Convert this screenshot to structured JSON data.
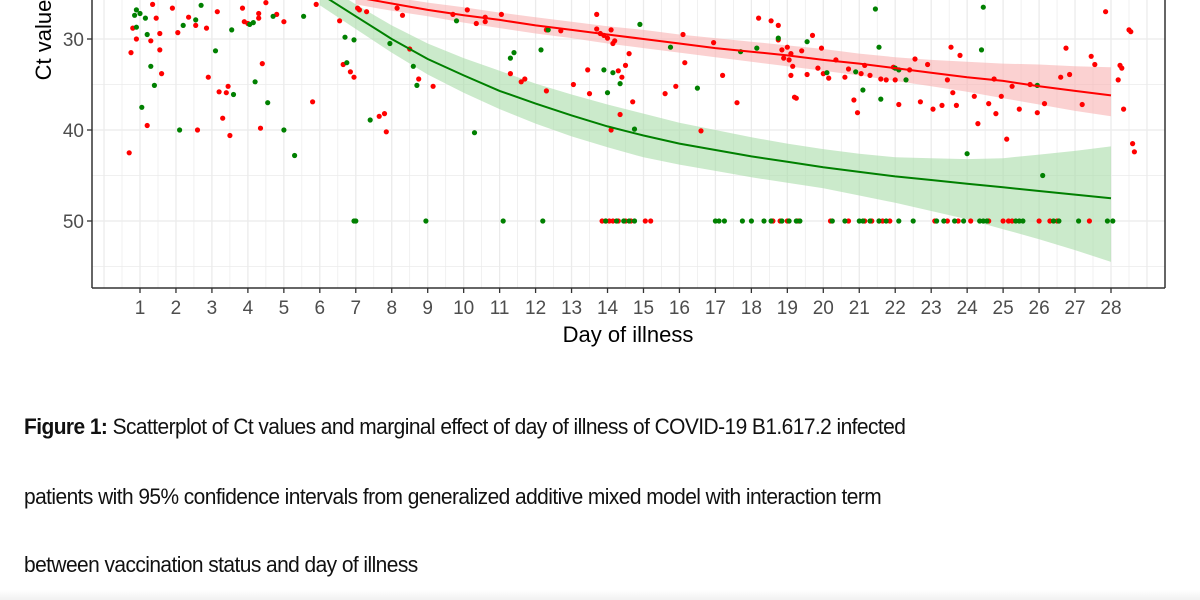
{
  "chart_data": {
    "type": "scatter",
    "title": "",
    "xlabel": "Day of illness",
    "ylabel": "Ct value",
    "x_ticks": [
      1,
      2,
      3,
      4,
      5,
      6,
      7,
      8,
      9,
      10,
      11,
      12,
      13,
      14,
      15,
      16,
      17,
      18,
      19,
      20,
      21,
      22,
      23,
      24,
      25,
      26,
      27,
      28
    ],
    "x_tick_labels": [
      "1",
      "2",
      "3",
      "4",
      "5",
      "6",
      "7",
      "8",
      "9",
      "10",
      "11",
      "12",
      "13",
      "14",
      "15",
      "16",
      "17",
      "18",
      "19",
      "20",
      "21",
      "22",
      "23",
      "24",
      "25",
      "26",
      "27",
      "28"
    ],
    "y_ticks": [
      30,
      40,
      50
    ],
    "y_tick_labels": [
      "30",
      "40",
      "50"
    ],
    "y_reversed": true,
    "xlim": [
      -0.33,
      29.5
    ],
    "ylim_visible": [
      25.7,
      57.4
    ],
    "grid": true,
    "legend": "none visible",
    "colors": {
      "group_red": "#ff0000",
      "group_green": "#008000",
      "band_red": "#f8b3b3",
      "band_green": "#a9dca9",
      "grid": "#ebebeb",
      "axis": "#333333"
    },
    "series": [
      {
        "name": "red group",
        "color": "#ff0000",
        "points": [
          [
            0.7,
            42.5
          ],
          [
            0.75,
            31.5
          ],
          [
            0.8,
            28.8
          ],
          [
            0.9,
            30
          ],
          [
            1.2,
            39.5
          ],
          [
            1.3,
            30.2
          ],
          [
            1.35,
            26.2
          ],
          [
            1.45,
            27.7
          ],
          [
            1.55,
            29.4
          ],
          [
            1.55,
            31.2
          ],
          [
            1.6,
            33.8
          ],
          [
            1.9,
            26.6
          ],
          [
            2.05,
            29.3
          ],
          [
            2.35,
            27.6
          ],
          [
            2.55,
            28.5
          ],
          [
            2.6,
            40
          ],
          [
            2.85,
            28.8
          ],
          [
            2.9,
            34.2
          ],
          [
            3.15,
            27
          ],
          [
            3.2,
            35.8
          ],
          [
            3.3,
            38.7
          ],
          [
            3.4,
            35.9
          ],
          [
            3.45,
            35.2
          ],
          [
            3.5,
            40.6
          ],
          [
            3.85,
            26.6
          ],
          [
            3.9,
            28.1
          ],
          [
            4.0,
            28.3
          ],
          [
            4.3,
            27.2
          ],
          [
            4.3,
            27.7
          ],
          [
            4.35,
            39.8
          ],
          [
            4.4,
            32.7
          ],
          [
            4.5,
            26
          ],
          [
            4.8,
            27.3
          ],
          [
            5.0,
            28.1
          ],
          [
            5.8,
            36.9
          ],
          [
            5.9,
            26.2
          ],
          [
            6.55,
            28.0
          ],
          [
            6.65,
            32.8
          ],
          [
            6.85,
            33.6
          ],
          [
            6.95,
            34.2
          ],
          [
            7.05,
            26.6
          ],
          [
            7.1,
            26.8
          ],
          [
            7.3,
            27.0
          ],
          [
            7.65,
            38.5
          ],
          [
            7.8,
            38.2
          ],
          [
            7.85,
            40.2
          ],
          [
            8.15,
            26.6
          ],
          [
            8.3,
            27.4
          ],
          [
            8.5,
            31.1
          ],
          [
            8.75,
            34.4
          ],
          [
            9.15,
            35.2
          ],
          [
            9.7,
            27.3
          ],
          [
            10.1,
            26.8
          ],
          [
            10.35,
            28.3
          ],
          [
            10.6,
            27.6
          ],
          [
            10.6,
            28.1
          ],
          [
            11.05,
            27.3
          ],
          [
            11.3,
            33.8
          ],
          [
            11.6,
            34.7
          ],
          [
            11.7,
            34.4
          ],
          [
            12.3,
            29.0
          ],
          [
            12.3,
            35.7
          ],
          [
            12.7,
            29.1
          ],
          [
            13.05,
            35.0
          ],
          [
            13.45,
            33.4
          ],
          [
            13.5,
            36.0
          ],
          [
            13.7,
            27.3
          ],
          [
            13.7,
            28.9
          ],
          [
            13.8,
            29.4
          ],
          [
            13.9,
            29.6
          ],
          [
            14.0,
            29.9
          ],
          [
            14.1,
            29.0
          ],
          [
            14.15,
            30.5
          ],
          [
            14.2,
            30.2
          ],
          [
            14.3,
            33.5
          ],
          [
            14.4,
            34.2
          ],
          [
            14.5,
            32.9
          ],
          [
            14.6,
            31.6
          ],
          [
            14.7,
            36.9
          ],
          [
            14.1,
            40.0
          ],
          [
            14.35,
            38.3
          ],
          [
            15.6,
            36.0
          ],
          [
            15.9,
            35.2
          ],
          [
            16.1,
            29.5
          ],
          [
            16.15,
            32.6
          ],
          [
            16.6,
            40.1
          ],
          [
            16.95,
            30.4
          ],
          [
            17.2,
            34.0
          ],
          [
            17.6,
            37.0
          ],
          [
            18.2,
            27.7
          ],
          [
            18.55,
            28.0
          ],
          [
            18.75,
            28.5
          ],
          [
            18.75,
            30.1
          ],
          [
            18.85,
            31.2
          ],
          [
            18.9,
            32.1
          ],
          [
            19.0,
            30.9
          ],
          [
            19.05,
            32.3
          ],
          [
            19.1,
            34.0
          ],
          [
            19.1,
            31.6
          ],
          [
            19.15,
            33.0
          ],
          [
            19.2,
            36.4
          ],
          [
            19.25,
            36.5
          ],
          [
            19.4,
            31.3
          ],
          [
            19.55,
            33.9
          ],
          [
            19.7,
            29.6
          ],
          [
            19.85,
            33.2
          ],
          [
            19.95,
            31.0
          ],
          [
            20.0,
            33.8
          ],
          [
            20.15,
            34.3
          ],
          [
            20.35,
            32.3
          ],
          [
            20.6,
            34.2
          ],
          [
            20.7,
            33.3
          ],
          [
            20.85,
            36.7
          ],
          [
            20.95,
            38.1
          ],
          [
            21.05,
            33.8
          ],
          [
            21.15,
            32.9
          ],
          [
            21.3,
            34.0
          ],
          [
            21.6,
            34.4
          ],
          [
            21.75,
            34.5
          ],
          [
            21.95,
            33.1
          ],
          [
            22.0,
            34.5
          ],
          [
            22.1,
            37.2
          ],
          [
            22.4,
            33.4
          ],
          [
            22.55,
            32.2
          ],
          [
            22.7,
            36.9
          ],
          [
            22.9,
            32.8
          ],
          [
            23.05,
            37.7
          ],
          [
            23.3,
            37.3
          ],
          [
            23.45,
            34.5
          ],
          [
            23.55,
            30.9
          ],
          [
            23.6,
            35.9
          ],
          [
            23.7,
            37.3
          ],
          [
            23.8,
            31.8
          ],
          [
            24.2,
            36.3
          ],
          [
            24.3,
            39.3
          ],
          [
            24.6,
            37.1
          ],
          [
            24.75,
            34.4
          ],
          [
            24.8,
            38.2
          ],
          [
            24.95,
            36.3
          ],
          [
            25.1,
            41.0
          ],
          [
            25.25,
            35.2
          ],
          [
            25.45,
            37.7
          ],
          [
            25.75,
            35.0
          ],
          [
            25.95,
            38.1
          ],
          [
            26.15,
            37.1
          ],
          [
            26.6,
            34.2
          ],
          [
            26.75,
            31.0
          ],
          [
            26.85,
            33.9
          ],
          [
            27.2,
            37.2
          ],
          [
            27.45,
            31.9
          ],
          [
            27.55,
            32.8
          ],
          [
            27.85,
            27.0
          ],
          [
            28.2,
            34.5
          ],
          [
            28.25,
            32.9
          ],
          [
            28.3,
            33.2
          ],
          [
            28.35,
            37.7
          ],
          [
            28.6,
            41.5
          ],
          [
            28.65,
            42.4
          ],
          [
            28.5,
            29.0
          ],
          [
            28.55,
            29.2
          ]
        ],
        "negatives_at_50": [
          13.85,
          13.95,
          14.05,
          14.15,
          14.3,
          14.5,
          14.65,
          15.05,
          15.2,
          18.6,
          18.8,
          19.0,
          19.3,
          20.2,
          20.7,
          21.15,
          21.35,
          21.55,
          21.65,
          21.85,
          23.1,
          23.45,
          23.75,
          24.1,
          24.6,
          25.0,
          25.15,
          25.25,
          26.0,
          26.3,
          26.5,
          27.4
        ]
      },
      {
        "name": "green group",
        "color": "#008000",
        "points": [
          [
            0.85,
            27.4
          ],
          [
            0.9,
            26.8
          ],
          [
            0.9,
            28.7
          ],
          [
            1.0,
            27.2
          ],
          [
            1.05,
            37.5
          ],
          [
            1.15,
            27.7
          ],
          [
            1.2,
            29.5
          ],
          [
            1.3,
            33.0
          ],
          [
            1.4,
            35.1
          ],
          [
            2.1,
            40.0
          ],
          [
            2.2,
            28.5
          ],
          [
            2.55,
            27.9
          ],
          [
            2.7,
            26.3
          ],
          [
            3.1,
            31.3
          ],
          [
            3.55,
            29.0
          ],
          [
            3.6,
            36.1
          ],
          [
            4.05,
            28.4
          ],
          [
            4.15,
            28.2
          ],
          [
            4.2,
            34.7
          ],
          [
            4.55,
            37.0
          ],
          [
            4.7,
            27.5
          ],
          [
            5.0,
            40.0
          ],
          [
            5.3,
            42.8
          ],
          [
            5.55,
            27.5
          ],
          [
            6.7,
            29.8
          ],
          [
            6.75,
            32.6
          ],
          [
            6.95,
            30.1
          ],
          [
            7.4,
            38.9
          ],
          [
            7.95,
            30.5
          ],
          [
            8.6,
            33.0
          ],
          [
            8.7,
            35.1
          ],
          [
            9.8,
            28.0
          ],
          [
            10.3,
            40.3
          ],
          [
            11.3,
            32.1
          ],
          [
            11.4,
            31.5
          ],
          [
            12.15,
            31.2
          ],
          [
            12.35,
            29.0
          ],
          [
            13.9,
            33.4
          ],
          [
            14.0,
            35.9
          ],
          [
            14.15,
            33.7
          ],
          [
            14.35,
            34.9
          ],
          [
            14.75,
            39.9
          ],
          [
            14.9,
            28.4
          ],
          [
            15.75,
            30.9
          ],
          [
            16.5,
            35.4
          ],
          [
            17.7,
            31.4
          ],
          [
            18.15,
            31.0
          ],
          [
            18.75,
            29.9
          ],
          [
            19.55,
            30.3
          ],
          [
            20.1,
            33.7
          ],
          [
            20.9,
            33.6
          ],
          [
            21.1,
            35.6
          ],
          [
            21.45,
            26.7
          ],
          [
            21.55,
            30.9
          ],
          [
            21.6,
            36.6
          ],
          [
            22.0,
            33.2
          ],
          [
            22.1,
            33.4
          ],
          [
            22.3,
            34.5
          ],
          [
            24.0,
            42.6
          ],
          [
            24.4,
            31.2
          ],
          [
            24.45,
            26.5
          ],
          [
            25.95,
            35.1
          ],
          [
            26.1,
            45.0
          ]
        ],
        "negatives_at_50": [
          6.95,
          7.0,
          8.95,
          11.1,
          12.2,
          13.95,
          14.25,
          14.45,
          14.6,
          14.75,
          17.0,
          17.1,
          17.25,
          17.75,
          18.0,
          18.35,
          18.55,
          18.85,
          19.05,
          19.25,
          19.35,
          20.25,
          20.6,
          21.0,
          21.1,
          21.3,
          21.55,
          21.75,
          22.1,
          22.5,
          23.15,
          23.35,
          23.65,
          23.9,
          24.35,
          24.45,
          24.55,
          25.35,
          25.45,
          25.55,
          26.4,
          26.55,
          27.1,
          27.9,
          28.05
        ]
      }
    ],
    "fits": [
      {
        "name": "red fit (GAMM)",
        "color": "#ff0000",
        "x": [
          7,
          8,
          9,
          10,
          11,
          12,
          13,
          14,
          15,
          16,
          17,
          18,
          19,
          20,
          21,
          22,
          23,
          24,
          25,
          26,
          27,
          28
        ],
        "y": [
          25.4,
          26.1,
          26.8,
          27.4,
          27.9,
          28.5,
          29.0,
          29.5,
          30.0,
          30.5,
          31.0,
          31.4,
          31.8,
          32.3,
          32.7,
          33.2,
          33.7,
          34.2,
          34.6,
          35.2,
          35.7,
          36.2
        ],
        "lower": [
          24.6,
          25.4,
          26.0,
          26.5,
          27.1,
          27.6,
          28.1,
          28.6,
          29.0,
          29.5,
          29.9,
          30.3,
          30.7,
          31.1,
          31.6,
          32.0,
          32.3,
          32.5,
          32.7,
          32.8,
          33.0,
          33.1
        ],
        "upper": [
          26.2,
          26.9,
          27.5,
          28.2,
          28.8,
          29.4,
          29.9,
          30.5,
          31.0,
          31.5,
          32.0,
          32.5,
          33.0,
          33.5,
          34.0,
          34.6,
          35.2,
          35.8,
          36.5,
          37.2,
          37.9,
          38.5
        ]
      },
      {
        "name": "green fit (GAMM)",
        "color": "#008000",
        "x": [
          6,
          7,
          8,
          9,
          10,
          11,
          12,
          13,
          14,
          15,
          16,
          17,
          18,
          19,
          20,
          21,
          22,
          23,
          24,
          25,
          26,
          27,
          28
        ],
        "y": [
          25.0,
          27.5,
          30.0,
          32.2,
          34.0,
          35.7,
          37.1,
          38.4,
          39.6,
          40.6,
          41.5,
          42.2,
          42.9,
          43.5,
          44.1,
          44.6,
          45.1,
          45.5,
          45.9,
          46.3,
          46.7,
          47.1,
          47.5
        ],
        "lower": [
          23.7,
          26.2,
          28.5,
          30.5,
          32.1,
          33.5,
          34.9,
          36.1,
          37.2,
          38.2,
          39.2,
          40.0,
          40.8,
          41.5,
          42.1,
          42.6,
          43.0,
          43.1,
          43.2,
          43.1,
          42.7,
          42.3,
          41.8
        ],
        "upper": [
          26.3,
          28.9,
          31.5,
          33.9,
          35.9,
          37.7,
          39.3,
          40.7,
          41.9,
          43.0,
          43.8,
          44.5,
          45.2,
          45.8,
          46.4,
          47.2,
          48.0,
          48.9,
          49.8,
          50.9,
          52.0,
          53.2,
          54.5
        ]
      }
    ]
  },
  "caption": {
    "label": "Figure 1:",
    "line1_rest": " Scatterplot of Ct values and marginal effect of day of illness of COVID-19 B1.617.2 infected",
    "line2": "patients with 95% confidence intervals from generalized additive mixed model with interaction term",
    "line3": "between vaccination status and day of illness"
  }
}
